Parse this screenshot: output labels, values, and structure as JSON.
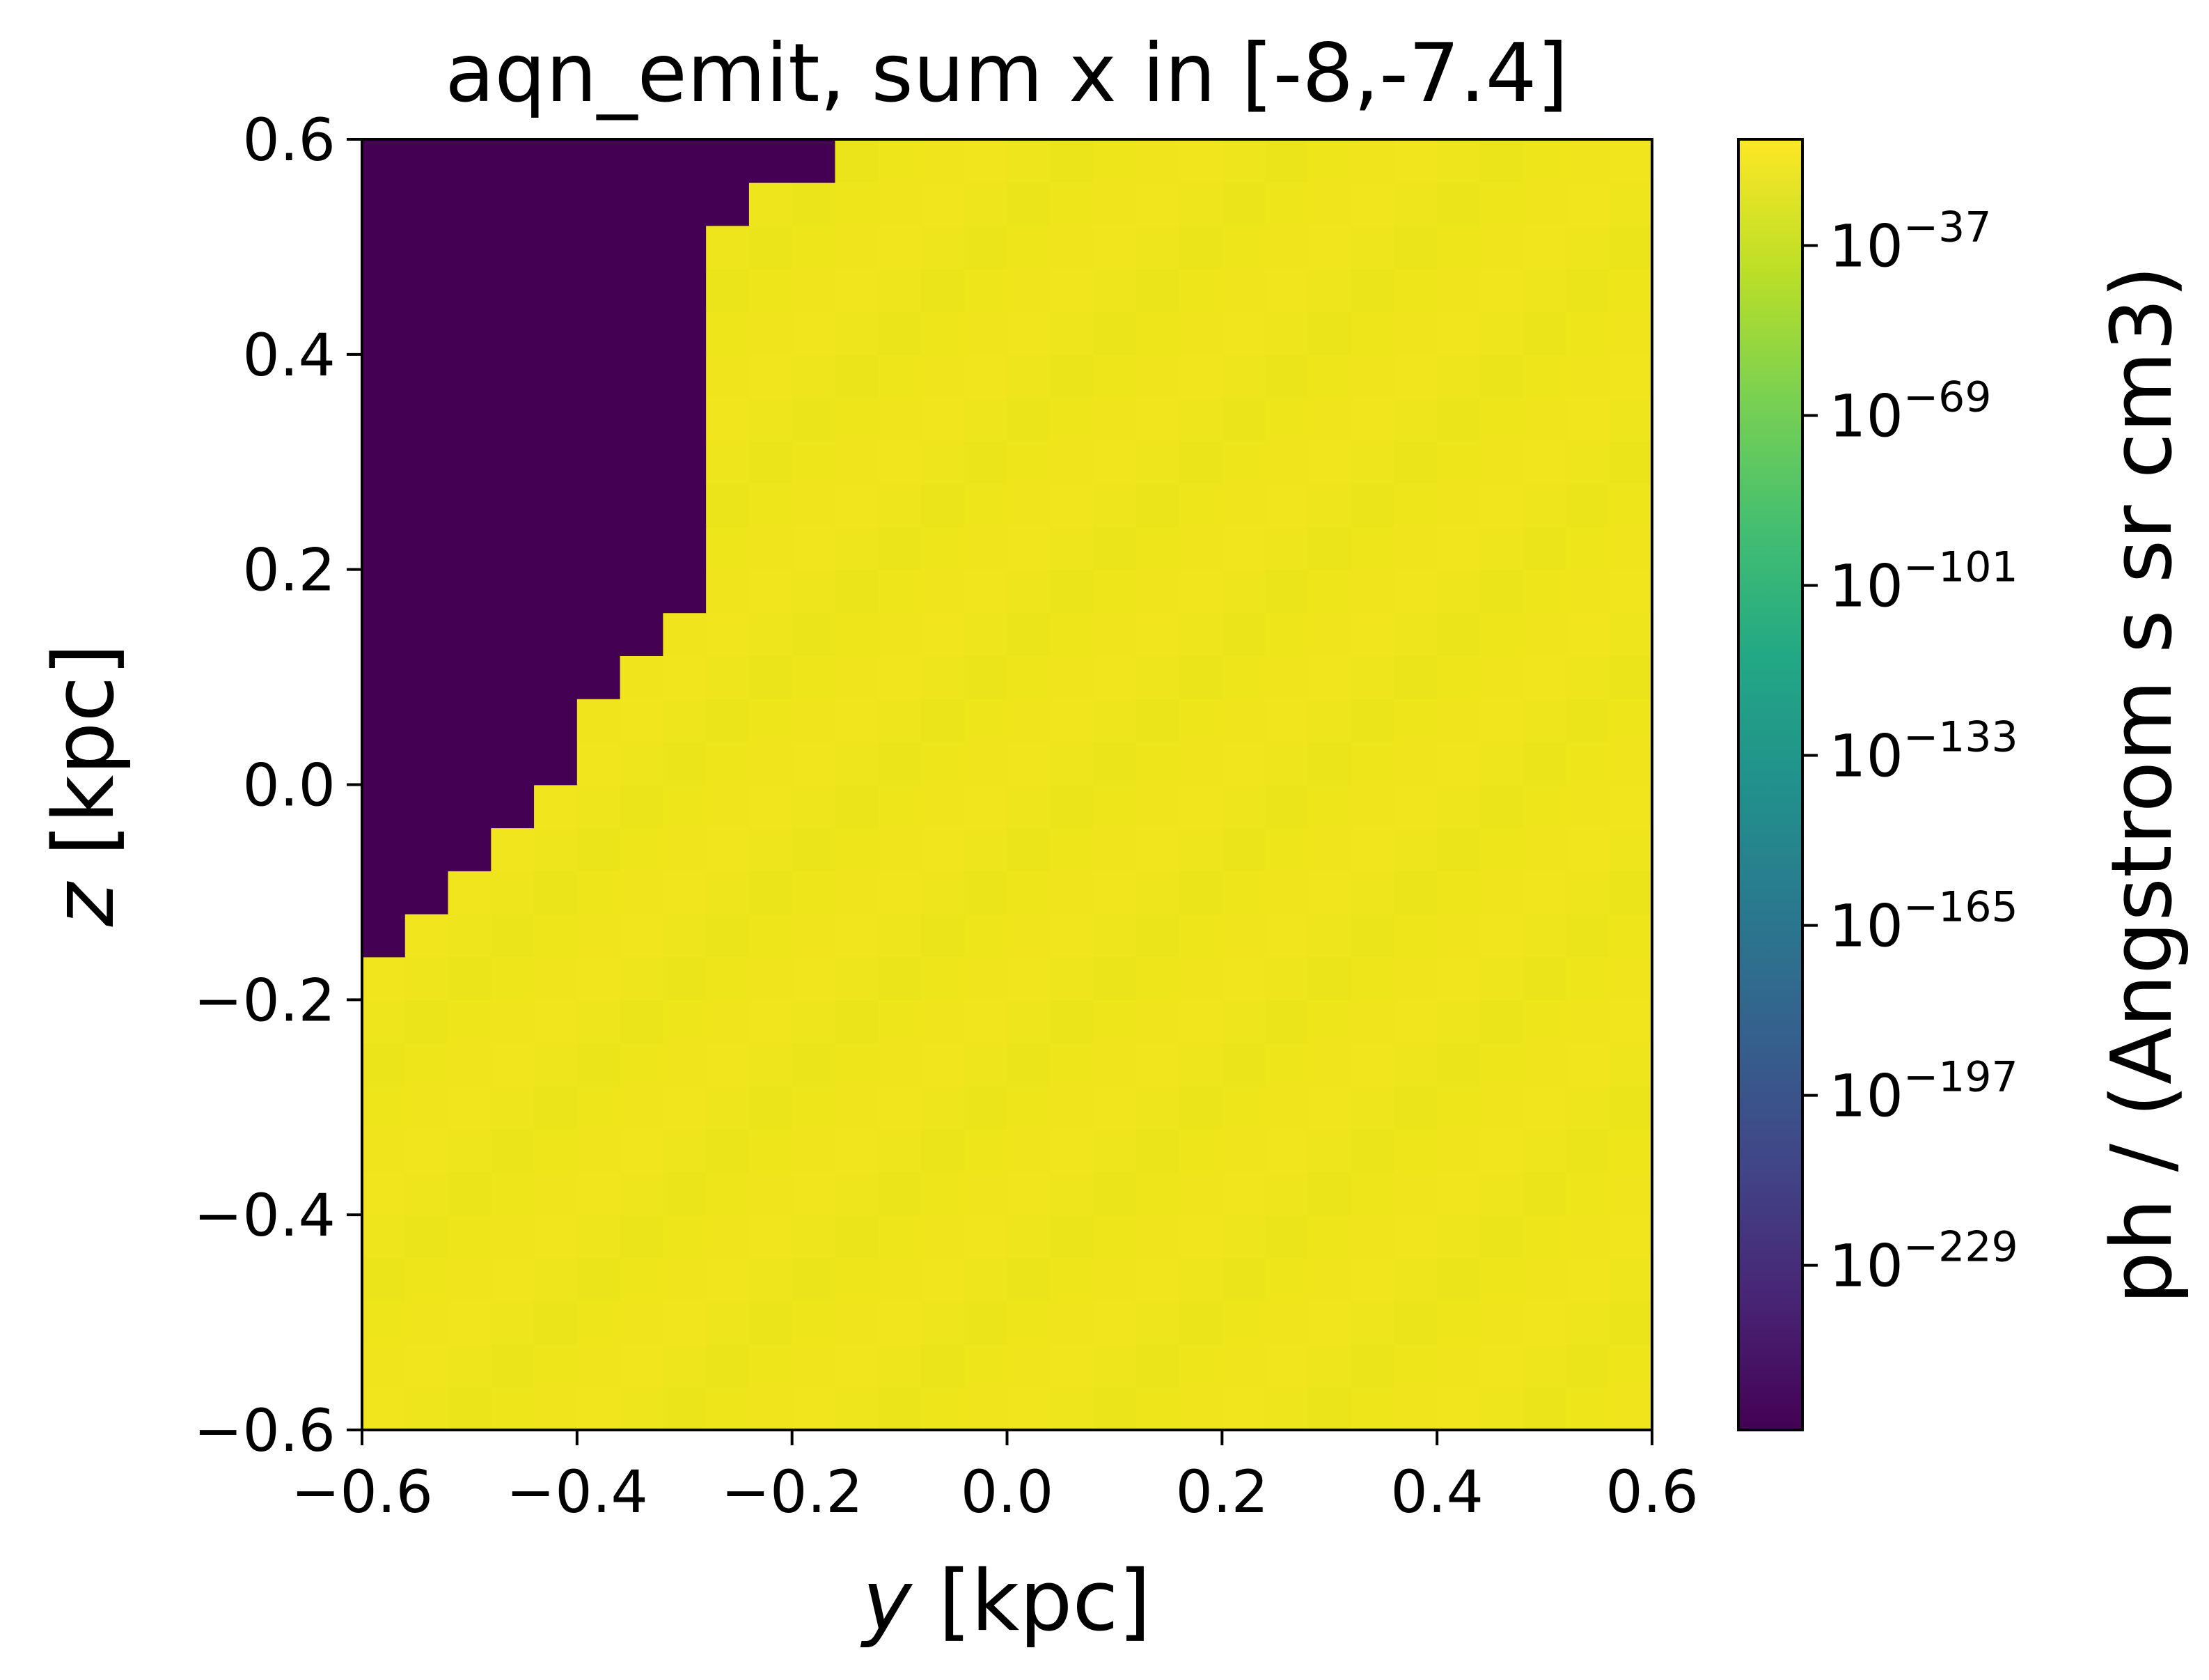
{
  "chart_data": {
    "type": "heatmap",
    "title": "aqn_emit, sum x in [-8,-7.4]",
    "xlabel_var": "y",
    "xlabel_unit": " [kpc]",
    "ylabel_var": "z",
    "ylabel_unit": " [kpc]",
    "xlim": [
      -0.6,
      0.6
    ],
    "ylim": [
      -0.6,
      0.6
    ],
    "xticks": [
      -0.6,
      -0.4,
      -0.2,
      0.0,
      0.2,
      0.4,
      0.6
    ],
    "xtick_labels": [
      "−0.6",
      "−0.4",
      "−0.2",
      "0.0",
      "0.2",
      "0.4",
      "0.6"
    ],
    "yticks": [
      -0.6,
      -0.4,
      -0.2,
      0.0,
      0.2,
      0.4,
      0.6
    ],
    "ytick_labels": [
      "−0.6",
      "−0.4",
      "−0.2",
      "0.0",
      "0.2",
      "0.4",
      "0.6"
    ],
    "grid": false,
    "colormap": "viridis",
    "color_scale": "log",
    "colorbar": {
      "label": "ph / (Angstrom s sr cm3)",
      "range_exp": [
        -260,
        -17
      ],
      "tick_exponents": [
        -37,
        -69,
        -101,
        -133,
        -165,
        -197,
        -229
      ],
      "tick_labels": [
        "−37",
        "−69",
        "−101",
        "−133",
        "−165",
        "−197",
        "−229"
      ],
      "tick_base": "10"
    },
    "cell_size_kpc": 0.04,
    "cells_per_axis": 30,
    "value_exp_in_region": -20,
    "value_exp_below_min": -260,
    "masked_region_boundary": {
      "description": "dark (below-minimum) cells in upper-left: for each z row band [z_low, z_high], dark for y < y_edge",
      "rows": [
        {
          "z": [
            -0.16,
            -0.12
          ],
          "y_edge": -0.56
        },
        {
          "z": [
            -0.12,
            -0.08
          ],
          "y_edge": -0.52
        },
        {
          "z": [
            -0.08,
            -0.04
          ],
          "y_edge": -0.48
        },
        {
          "z": [
            -0.04,
            0.0
          ],
          "y_edge": -0.44
        },
        {
          "z": [
            0.0,
            0.08
          ],
          "y_edge": -0.4
        },
        {
          "z": [
            0.08,
            0.12
          ],
          "y_edge": -0.36
        },
        {
          "z": [
            0.12,
            0.16
          ],
          "y_edge": -0.32
        },
        {
          "z": [
            0.16,
            0.52
          ],
          "y_edge": -0.28
        },
        {
          "z": [
            0.52,
            0.56
          ],
          "y_edge": -0.24
        },
        {
          "z": [
            0.56,
            0.6
          ],
          "y_edge": -0.16
        }
      ]
    }
  }
}
